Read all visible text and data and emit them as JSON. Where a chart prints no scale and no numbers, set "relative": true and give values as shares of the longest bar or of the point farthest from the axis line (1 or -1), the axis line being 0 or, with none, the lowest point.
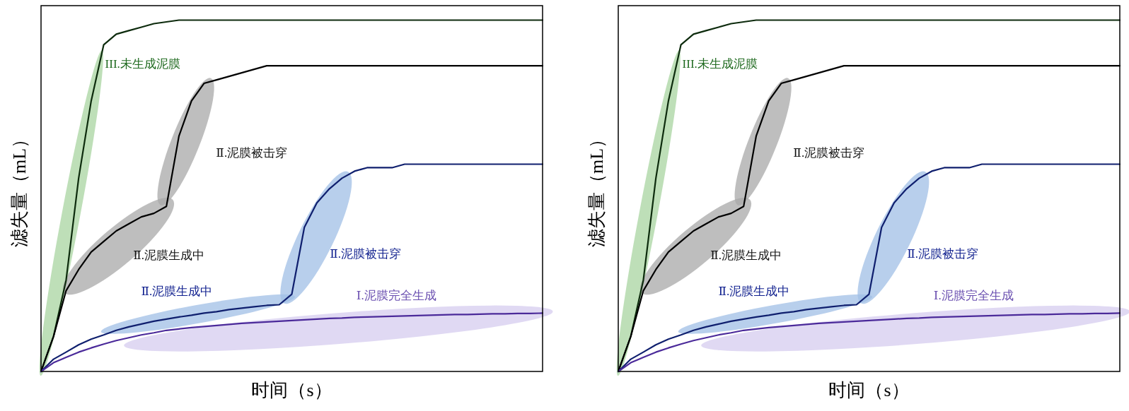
{
  "chart_data": [
    {
      "type": "line",
      "relative": true,
      "xlabel": "时间（s）",
      "ylabel": "滤失量（mL）",
      "categories": [
        null,
        null,
        null,
        null,
        null,
        null,
        null,
        null,
        null,
        null,
        null,
        null,
        null,
        null,
        null,
        null,
        null,
        null,
        null,
        null,
        null,
        null,
        null,
        null,
        null,
        null,
        null,
        null,
        null,
        null,
        null,
        null,
        null,
        null,
        null,
        null,
        null,
        null,
        null,
        null,
        null
      ],
      "series": [
        {
          "color": "#0d2b0d",
          "values": [
            0,
            0.1,
            0.26,
            0.55,
            0.77,
            0.93,
            0.96,
            0.97,
            0.98,
            0.99,
            0.995,
            1,
            1,
            1,
            1,
            1,
            1,
            1,
            1,
            1,
            1,
            1,
            1,
            1,
            1,
            1,
            1,
            1,
            1,
            1,
            1,
            1,
            1,
            1,
            1,
            1,
            1,
            1,
            1,
            1,
            1
          ]
        },
        {
          "color": "#000000",
          "values": [
            0,
            0.1,
            0.23,
            0.29,
            0.34,
            0.37,
            0.4,
            0.42,
            0.44,
            0.45,
            0.47,
            0.67,
            0.77,
            0.82,
            0.83,
            0.84,
            0.85,
            0.86,
            0.87,
            0.87,
            0.87,
            0.87,
            0.87,
            0.87,
            0.87,
            0.87,
            0.87,
            0.87,
            0.87,
            0.87,
            0.87,
            0.87,
            0.87,
            0.87,
            0.87,
            0.87,
            0.87,
            0.87,
            0.87,
            0.87,
            0.87
          ]
        },
        {
          "color": "#0f1f6e",
          "values": [
            0,
            0.035,
            0.055,
            0.076,
            0.092,
            0.104,
            0.117,
            0.127,
            0.135,
            0.143,
            0.149,
            0.155,
            0.16,
            0.166,
            0.17,
            0.176,
            0.18,
            0.184,
            0.188,
            0.19,
            0.22,
            0.41,
            0.48,
            0.52,
            0.55,
            0.57,
            0.58,
            0.58,
            0.58,
            0.59,
            0.59,
            0.59,
            0.59,
            0.59,
            0.59,
            0.59,
            0.59,
            0.59,
            0.59,
            0.59,
            0.59
          ]
        },
        {
          "color": "#4b2a9a",
          "values": [
            0,
            0.025,
            0.04,
            0.055,
            0.067,
            0.078,
            0.088,
            0.096,
            0.104,
            0.11,
            0.117,
            0.121,
            0.125,
            0.128,
            0.131,
            0.134,
            0.137,
            0.139,
            0.141,
            0.143,
            0.145,
            0.147,
            0.149,
            0.151,
            0.152,
            0.154,
            0.155,
            0.156,
            0.157,
            0.158,
            0.159,
            0.16,
            0.161,
            0.162,
            0.162,
            0.163,
            0.164,
            0.164,
            0.165,
            0.165,
            0.166
          ]
        }
      ],
      "annotations": [
        "III.未生成泥膜",
        "Ⅱ.泥膜被击穿",
        "Ⅱ.泥膜生成中",
        "Ⅱ.泥膜被击穿",
        "Ⅱ.泥膜生成中",
        "Ⅰ.泥膜完全生成"
      ]
    },
    {
      "type": "line",
      "relative": true,
      "xlabel": "时间（s）",
      "ylabel": "滤失量（mL）",
      "categories": [
        null,
        null,
        null,
        null,
        null,
        null,
        null,
        null,
        null,
        null,
        null,
        null,
        null,
        null,
        null,
        null,
        null,
        null,
        null,
        null,
        null,
        null,
        null,
        null,
        null,
        null,
        null,
        null,
        null,
        null,
        null,
        null,
        null,
        null,
        null,
        null,
        null,
        null,
        null,
        null,
        null
      ],
      "series": [
        {
          "color": "#0d2b0d",
          "values": [
            0,
            0.1,
            0.26,
            0.55,
            0.77,
            0.93,
            0.96,
            0.97,
            0.98,
            0.99,
            0.995,
            1,
            1,
            1,
            1,
            1,
            1,
            1,
            1,
            1,
            1,
            1,
            1,
            1,
            1,
            1,
            1,
            1,
            1,
            1,
            1,
            1,
            1,
            1,
            1,
            1,
            1,
            1,
            1,
            1,
            1
          ]
        },
        {
          "color": "#000000",
          "values": [
            0,
            0.1,
            0.23,
            0.29,
            0.34,
            0.37,
            0.4,
            0.42,
            0.44,
            0.45,
            0.47,
            0.67,
            0.77,
            0.82,
            0.83,
            0.84,
            0.85,
            0.86,
            0.87,
            0.87,
            0.87,
            0.87,
            0.87,
            0.87,
            0.87,
            0.87,
            0.87,
            0.87,
            0.87,
            0.87,
            0.87,
            0.87,
            0.87,
            0.87,
            0.87,
            0.87,
            0.87,
            0.87,
            0.87,
            0.87,
            0.87
          ]
        },
        {
          "color": "#0f1f6e",
          "values": [
            0,
            0.035,
            0.055,
            0.076,
            0.092,
            0.104,
            0.117,
            0.127,
            0.135,
            0.143,
            0.149,
            0.155,
            0.16,
            0.166,
            0.17,
            0.176,
            0.18,
            0.184,
            0.188,
            0.19,
            0.22,
            0.41,
            0.48,
            0.52,
            0.55,
            0.57,
            0.58,
            0.58,
            0.58,
            0.59,
            0.59,
            0.59,
            0.59,
            0.59,
            0.59,
            0.59,
            0.59,
            0.59,
            0.59,
            0.59,
            0.59
          ]
        },
        {
          "color": "#4b2a9a",
          "values": [
            0,
            0.025,
            0.04,
            0.055,
            0.067,
            0.078,
            0.088,
            0.096,
            0.104,
            0.11,
            0.117,
            0.121,
            0.125,
            0.128,
            0.131,
            0.134,
            0.137,
            0.139,
            0.141,
            0.143,
            0.145,
            0.147,
            0.149,
            0.151,
            0.152,
            0.154,
            0.155,
            0.156,
            0.157,
            0.158,
            0.159,
            0.16,
            0.161,
            0.162,
            0.162,
            0.163,
            0.164,
            0.164,
            0.165,
            0.165,
            0.166
          ]
        }
      ],
      "annotations": [
        "III.未生成泥膜",
        "Ⅱ.泥膜被击穿",
        "Ⅱ.泥膜生成中",
        "Ⅱ.泥膜被击穿",
        "Ⅱ.泥膜生成中",
        "Ⅰ.泥膜完全生成"
      ]
    }
  ]
}
